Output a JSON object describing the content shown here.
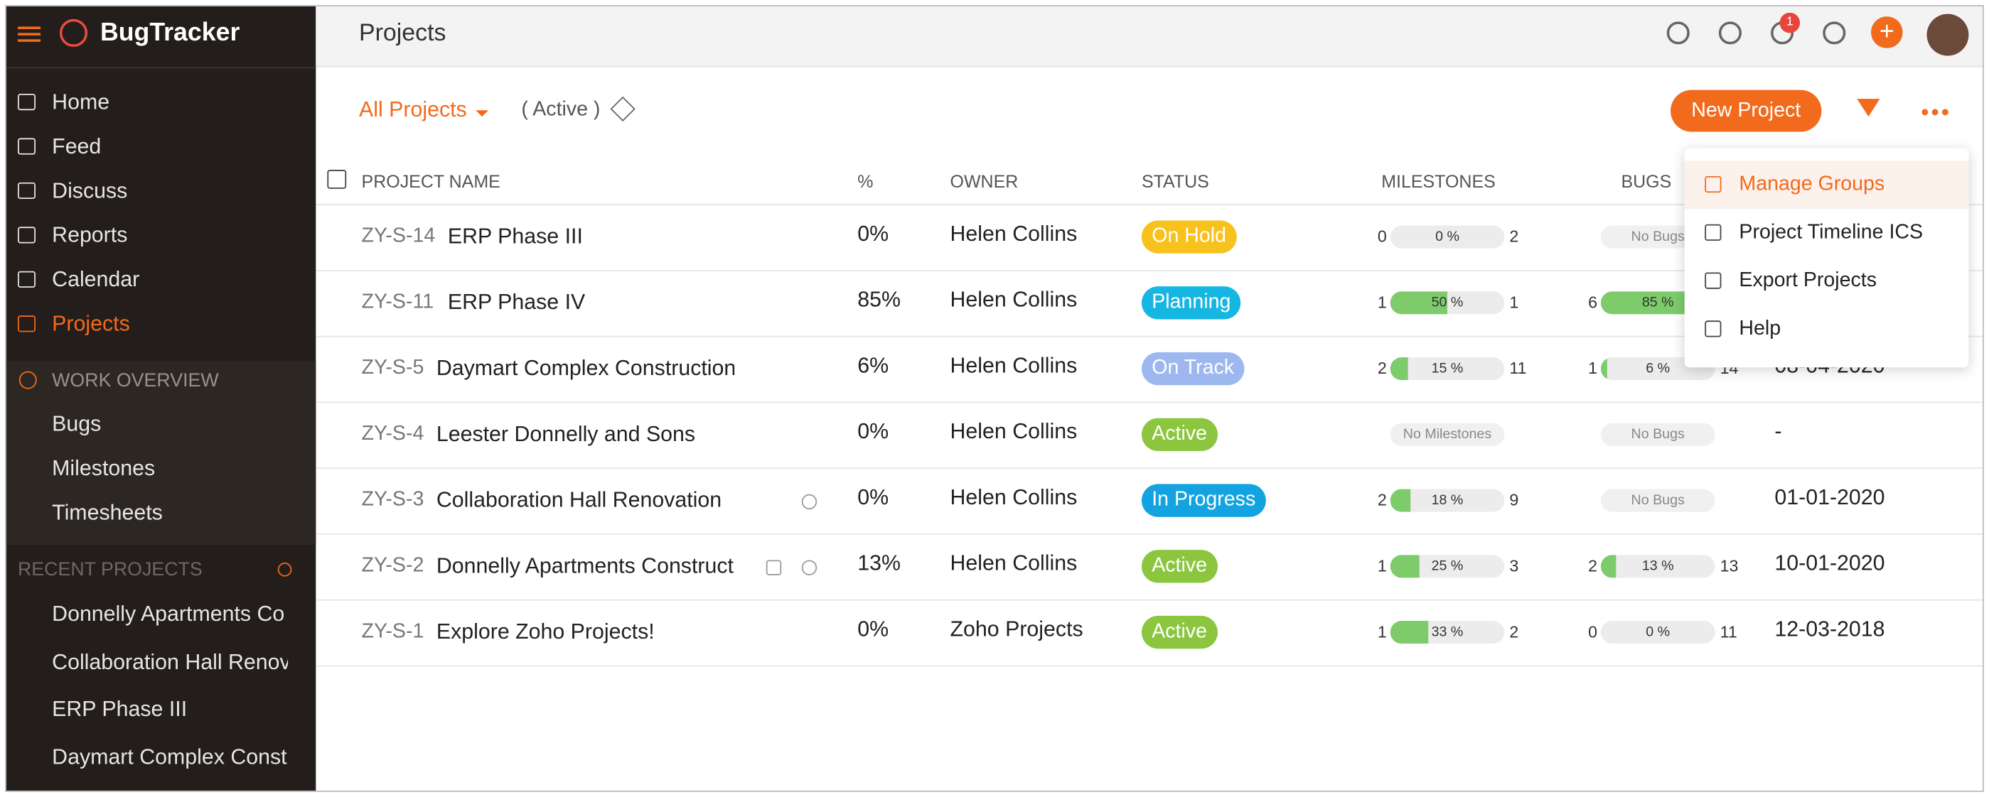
{
  "sidebar": {
    "brand": "BugTracker",
    "nav": [
      "Home",
      "Feed",
      "Discuss",
      "Reports",
      "Calendar",
      "Projects"
    ],
    "active": 5,
    "work_overview": {
      "title": "WORK OVERVIEW",
      "items": [
        "Bugs",
        "Milestones",
        "Timesheets"
      ]
    },
    "recent_projects": {
      "title": "RECENT PROJECTS",
      "items": [
        "Donnelly Apartments Co",
        "Collaboration Hall Renov",
        "ERP Phase III",
        "Daymart Complex Const"
      ]
    }
  },
  "header": {
    "title": "Projects",
    "notifications": "1"
  },
  "toolbar": {
    "view": "All Projects",
    "filter": "( Active )",
    "new_button": "New Project"
  },
  "table": {
    "columns": [
      "PROJECT NAME",
      "%",
      "OWNER",
      "STATUS",
      "MILESTONES",
      "BUGS"
    ],
    "rows": [
      {
        "id": "ZY-S-14",
        "name": "ERP Phase III",
        "percent": "0%",
        "owner": "Helen Collins",
        "status": "On Hold",
        "status_color": "#f7c21d",
        "milestones": {
          "open": 0,
          "percent": {
            "value": 0,
            "label": "0 %"
          },
          "closed": 2
        },
        "bugs": "No Bugs"
      },
      {
        "id": "ZY-S-11",
        "name": "ERP Phase IV",
        "percent": "85%",
        "owner": "Helen Collins",
        "status": "Planning",
        "status_color": "#16b6e3",
        "milestones": {
          "open": 1,
          "percent": {
            "value": 50,
            "label": "50 %"
          },
          "closed": 1
        },
        "bugs": {
          "open": 6,
          "percent": {
            "value": 85,
            "label": "85 %"
          }
        }
      },
      {
        "id": "ZY-S-5",
        "name": "Daymart Complex Construction",
        "percent": "6%",
        "owner": "Helen Collins",
        "status": "On Track",
        "status_color": "#9db8ef",
        "milestones": {
          "open": 2,
          "percent": {
            "value": 15,
            "label": "15 %"
          },
          "closed": 11
        },
        "bugs": {
          "open": 1,
          "percent": {
            "value": 6,
            "label": "6 %"
          },
          "closed": 14
        },
        "date": "08-04-2020"
      },
      {
        "id": "ZY-S-4",
        "name": "Leester Donnelly and Sons",
        "percent": "0%",
        "owner": "Helen Collins",
        "status": "Active",
        "status_color": "#8cc63f",
        "milestones": "No Milestones",
        "bugs": "No Bugs",
        "date": "-"
      },
      {
        "id": "ZY-S-3",
        "name": "Collaboration Hall Renovation",
        "percent": "0%",
        "owner": "Helen Collins",
        "status": "In Progress",
        "status_color": "#12a3e0",
        "milestones": {
          "open": 2,
          "percent": {
            "value": 18,
            "label": "18 %"
          },
          "closed": 9
        },
        "bugs": "No Bugs",
        "date": "01-01-2020"
      },
      {
        "id": "ZY-S-2",
        "name": "Donnelly Apartments Constructi",
        "percent": "13%",
        "owner": "Helen Collins",
        "status": "Active",
        "status_color": "#8cc63f",
        "milestones": {
          "open": 1,
          "percent": {
            "value": 25,
            "label": "25 %"
          },
          "closed": 3
        },
        "bugs": {
          "open": 2,
          "percent": {
            "value": 13,
            "label": "13 %"
          },
          "closed": 13
        },
        "date": "10-01-2020"
      },
      {
        "id": "ZY-S-1",
        "name": "Explore Zoho Projects!",
        "percent": "0%",
        "owner": "Zoho Projects",
        "status": "Active",
        "status_color": "#8cc63f",
        "milestones": {
          "open": 1,
          "percent": {
            "value": 33,
            "label": "33 %"
          },
          "closed": 2
        },
        "bugs": {
          "open": 0,
          "percent": {
            "value": 0,
            "label": "0 %"
          },
          "closed": 11
        },
        "date": "12-03-2018"
      }
    ]
  },
  "menu": [
    "Manage Groups",
    "Project Timeline ICS",
    "Export Projects",
    "Help"
  ]
}
